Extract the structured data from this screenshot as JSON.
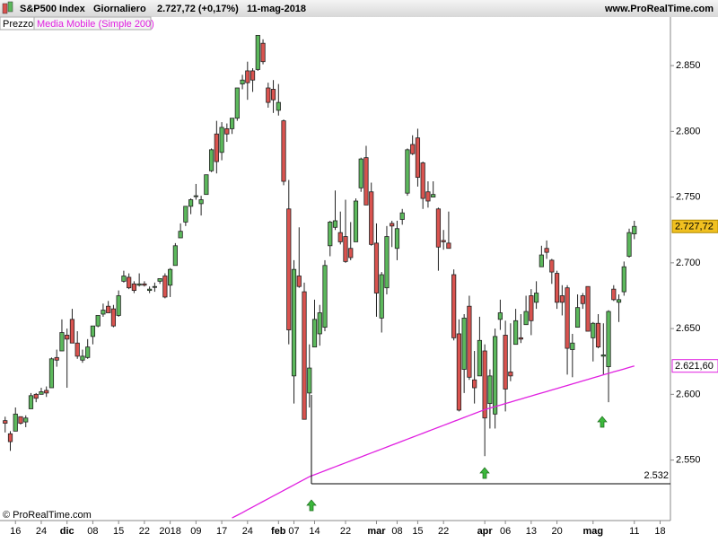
{
  "header": {
    "title": "S&P500 Index",
    "period": "Giornaliero",
    "quote": "2.727,72 (+0,17%)",
    "date": "11-mag-2018",
    "site": "www.ProRealTime.com"
  },
  "legend": {
    "price": "Prezzo",
    "indicator": "Media Mobile (Simple 200)"
  },
  "footer": "© ProRealTime.com",
  "chart_data": {
    "type": "candlestick",
    "up_color": "#5cb85c",
    "down_color": "#d9534f",
    "xlim": [
      -1,
      129
    ],
    "xticks": [
      {
        "value": 2,
        "label": "16"
      },
      {
        "value": 7,
        "label": "24"
      },
      {
        "value": 12,
        "label": "dic"
      },
      {
        "value": 17,
        "label": "08"
      },
      {
        "value": 22,
        "label": "15"
      },
      {
        "value": 27,
        "label": "22"
      },
      {
        "value": 32,
        "label": "2018"
      },
      {
        "value": 37,
        "label": "09"
      },
      {
        "value": 42,
        "label": "17"
      },
      {
        "value": 47,
        "label": "24"
      },
      {
        "value": 53,
        "label": "feb"
      },
      {
        "value": 56,
        "label": "07"
      },
      {
        "value": 60,
        "label": "14"
      },
      {
        "value": 66,
        "label": "22"
      },
      {
        "value": 72,
        "label": "mar"
      },
      {
        "value": 76,
        "label": "08"
      },
      {
        "value": 80,
        "label": "15"
      },
      {
        "value": 85,
        "label": "22"
      },
      {
        "value": 93,
        "label": "apr"
      },
      {
        "value": 97,
        "label": "06"
      },
      {
        "value": 102,
        "label": "13"
      },
      {
        "value": 107,
        "label": "20"
      },
      {
        "value": 114,
        "label": "mag"
      },
      {
        "value": 122,
        "label": "11"
      },
      {
        "value": 127,
        "label": "18"
      }
    ],
    "ylim": [
      2504,
      2876
    ],
    "yticks": [
      {
        "value": 2550,
        "label": "2.550"
      },
      {
        "value": 2600,
        "label": "2.600"
      },
      {
        "value": 2650,
        "label": "2.650"
      },
      {
        "value": 2700,
        "label": "2.700"
      },
      {
        "value": 2750,
        "label": "2.750"
      },
      {
        "value": 2800,
        "label": "2.800"
      },
      {
        "value": 2850,
        "label": "2.850"
      }
    ],
    "ohlc": [
      [
        2580,
        2583,
        2571,
        2578
      ],
      [
        2570,
        2572,
        2557,
        2564
      ],
      [
        2572,
        2590,
        2572,
        2585
      ],
      [
        2583,
        2583,
        2577,
        2578
      ],
      [
        2579,
        2584,
        2575,
        2582
      ],
      [
        2589,
        2601,
        2589,
        2599
      ],
      [
        2600,
        2601,
        2594,
        2597
      ],
      [
        2600,
        2605,
        2600,
        2602
      ],
      [
        2603,
        2606,
        2598,
        2601
      ],
      [
        2605,
        2628,
        2605,
        2627
      ],
      [
        2628,
        2634,
        2621,
        2626
      ],
      [
        2633,
        2657,
        2633,
        2647
      ],
      [
        2645,
        2650,
        2605,
        2642
      ],
      [
        2657,
        2665,
        2639,
        2639
      ],
      [
        2639,
        2648,
        2627,
        2629
      ],
      [
        2626,
        2634,
        2624,
        2629
      ],
      [
        2628,
        2642,
        2627,
        2636
      ],
      [
        2644,
        2652,
        2638,
        2652
      ],
      [
        2652,
        2660,
        2651,
        2660
      ],
      [
        2661,
        2669,
        2659,
        2664
      ],
      [
        2667,
        2671,
        2662,
        2662
      ],
      [
        2665,
        2668,
        2651,
        2652
      ],
      [
        2660,
        2679,
        2659,
        2675
      ],
      [
        2686,
        2694,
        2685,
        2690
      ],
      [
        2689,
        2692,
        2680,
        2681
      ],
      [
        2684,
        2686,
        2677,
        2679
      ],
      [
        2683,
        2692,
        2682,
        2684
      ],
      [
        2684,
        2686,
        2682,
        2683
      ],
      [
        2679,
        2682,
        2677,
        2680
      ],
      [
        2682,
        2685,
        2678,
        2682
      ],
      [
        2686,
        2688,
        2684,
        2688
      ],
      [
        2690,
        2692,
        2673,
        2674
      ],
      [
        2683,
        2696,
        2674,
        2695
      ],
      [
        2698,
        2715,
        2698,
        2713
      ],
      [
        2719,
        2730,
        2719,
        2724
      ],
      [
        2731,
        2743,
        2728,
        2743
      ],
      [
        2743,
        2749,
        2737,
        2748
      ],
      [
        2751,
        2760,
        2748,
        2751
      ],
      [
        2745,
        2751,
        2736,
        2748
      ],
      [
        2752,
        2767,
        2752,
        2767
      ],
      [
        2770,
        2787,
        2769,
        2786
      ],
      [
        2798,
        2808,
        2768,
        2777
      ],
      [
        2784,
        2807,
        2778,
        2803
      ],
      [
        2802,
        2806,
        2792,
        2798
      ],
      [
        2802,
        2810,
        2798,
        2810
      ],
      [
        2810,
        2833,
        2808,
        2833
      ],
      [
        2836,
        2843,
        2832,
        2839
      ],
      [
        2846,
        2853,
        2824,
        2837
      ],
      [
        2846,
        2848,
        2830,
        2839
      ],
      [
        2847,
        2873,
        2846,
        2873
      ],
      [
        2867,
        2870,
        2851,
        2853
      ],
      [
        2833,
        2837,
        2818,
        2822
      ],
      [
        2832,
        2839,
        2814,
        2824
      ],
      [
        2816,
        2836,
        2812,
        2822
      ],
      [
        2808,
        2809,
        2759,
        2762
      ],
      [
        2741,
        2763,
        2638,
        2649
      ],
      [
        2614,
        2702,
        2593,
        2695
      ],
      [
        2690,
        2727,
        2681,
        2682
      ],
      [
        2678,
        2685,
        2581,
        2581
      ],
      [
        2601,
        2638,
        2590,
        2620
      ],
      [
        2636,
        2672,
        2636,
        2657
      ],
      [
        2646,
        2668,
        2637,
        2662
      ],
      [
        2651,
        2702,
        2648,
        2698
      ],
      [
        2713,
        2732,
        2705,
        2731
      ],
      [
        2727,
        2755,
        2725,
        2732
      ],
      [
        2723,
        2739,
        2714,
        2716
      ],
      [
        2720,
        2748,
        2700,
        2701
      ],
      [
        2711,
        2731,
        2702,
        2704
      ],
      [
        2716,
        2749,
        2716,
        2747
      ],
      [
        2757,
        2780,
        2754,
        2779
      ],
      [
        2780,
        2789,
        2744,
        2744
      ],
      [
        2754,
        2761,
        2713,
        2714
      ],
      [
        2715,
        2730,
        2659,
        2677
      ],
      [
        2658,
        2693,
        2647,
        2691
      ],
      [
        2681,
        2728,
        2676,
        2720
      ],
      [
        2730,
        2732,
        2712,
        2728
      ],
      [
        2711,
        2732,
        2702,
        2726
      ],
      [
        2733,
        2741,
        2729,
        2738
      ],
      [
        2753,
        2787,
        2751,
        2786
      ],
      [
        2790,
        2797,
        2782,
        2783
      ],
      [
        2795,
        2802,
        2758,
        2765
      ],
      [
        2776,
        2777,
        2741,
        2749
      ],
      [
        2754,
        2762,
        2742,
        2747
      ],
      [
        2750,
        2762,
        2750,
        2752
      ],
      [
        2741,
        2742,
        2694,
        2712
      ],
      [
        2717,
        2725,
        2710,
        2716
      ],
      [
        2715,
        2739,
        2711,
        2711
      ],
      [
        2691,
        2695,
        2641,
        2643
      ],
      [
        2646,
        2657,
        2587,
        2588
      ],
      [
        2619,
        2661,
        2601,
        2658
      ],
      [
        2667,
        2675,
        2611,
        2613
      ],
      [
        2611,
        2633,
        2593,
        2605
      ],
      [
        2614,
        2659,
        2614,
        2641
      ],
      [
        2633,
        2638,
        2553,
        2582
      ],
      [
        2593,
        2619,
        2574,
        2614
      ],
      [
        2585,
        2650,
        2574,
        2644
      ],
      [
        2657,
        2672,
        2649,
        2662
      ],
      [
        2645,
        2656,
        2587,
        2604
      ],
      [
        2617,
        2654,
        2610,
        2614
      ],
      [
        2638,
        2665,
        2638,
        2656
      ],
      [
        2643,
        2661,
        2639,
        2642
      ],
      [
        2653,
        2675,
        2653,
        2663
      ],
      [
        2675,
        2680,
        2645,
        2656
      ],
      [
        2670,
        2686,
        2665,
        2677
      ],
      [
        2697,
        2713,
        2697,
        2706
      ],
      [
        2711,
        2717,
        2703,
        2708
      ],
      [
        2702,
        2703,
        2684,
        2693
      ],
      [
        2692,
        2694,
        2665,
        2670
      ],
      [
        2675,
        2683,
        2660,
        2670
      ],
      [
        2681,
        2683,
        2615,
        2635
      ],
      [
        2634,
        2646,
        2613,
        2639
      ],
      [
        2651,
        2676,
        2651,
        2666
      ],
      [
        2675,
        2677,
        2665,
        2669
      ],
      [
        2682,
        2682,
        2648,
        2648
      ],
      [
        2643,
        2655,
        2625,
        2654
      ],
      [
        2654,
        2661,
        2635,
        2636
      ],
      [
        2629,
        2654,
        2615,
        2630
      ],
      [
        2621,
        2664,
        2594,
        2663
      ],
      [
        2680,
        2683,
        2671,
        2672
      ],
      [
        2670,
        2676,
        2655,
        2672
      ],
      [
        2678,
        2701,
        2675,
        2697
      ],
      [
        2705,
        2726,
        2704,
        2723
      ],
      [
        2722,
        2732,
        2718,
        2727.72
      ]
    ],
    "last_price": {
      "value": 2727.72,
      "label": "2.727,72",
      "color": "#f0c020"
    },
    "moving_average": {
      "name": "Media Mobile (Simple 200)",
      "color": "#e020e0",
      "values": [
        null,
        null,
        null,
        null,
        null,
        null,
        null,
        null,
        null,
        null,
        null,
        null,
        null,
        null,
        null,
        null,
        null,
        null,
        null,
        null,
        null,
        null,
        null,
        null,
        null,
        null,
        null,
        null,
        null,
        null,
        null,
        null,
        null,
        null,
        null,
        null,
        null,
        null,
        null,
        null,
        null,
        null,
        null,
        null,
        2506,
        2508,
        2510,
        2512.2,
        2514.3,
        2516.4,
        2518.5,
        2520.6,
        2522.7,
        2524.8,
        2526.9,
        2529,
        2531.1,
        2533.2,
        2535.3,
        2537.4,
        2538.9,
        2540.4,
        2541.9,
        2543.4,
        2544.9,
        2546.4,
        2547.9,
        2549.4,
        2550.9,
        2552.4,
        2553.9,
        2555.4,
        2556.9,
        2558.4,
        2559.9,
        2561.4,
        2562.9,
        2564.4,
        2565.9,
        2567.4,
        2568.9,
        2570.4,
        2571.9,
        2573.4,
        2574.9,
        2576.4,
        2577.9,
        2579.4,
        2580.9,
        2582.4,
        2583.9,
        2585.4,
        2586.9,
        2588.4,
        2589.5,
        2590.7,
        2591.8,
        2593.0,
        2594.1,
        2595.3,
        2596.4,
        2597.6,
        2598.7,
        2599.9,
        2601.0,
        2602.1,
        2603.3,
        2604.4,
        2605.6,
        2606.7,
        2607.9,
        2609.0,
        2610.2,
        2611.3,
        2612.5,
        2613.6,
        2614.8,
        2615.9,
        2617.1,
        2618.2,
        2619.3,
        2620.5,
        2621.6
      ],
      "last": {
        "value": 2621.6,
        "label": "2.621,60"
      }
    },
    "support": {
      "value": 2532,
      "label": "2.532"
    }
  }
}
